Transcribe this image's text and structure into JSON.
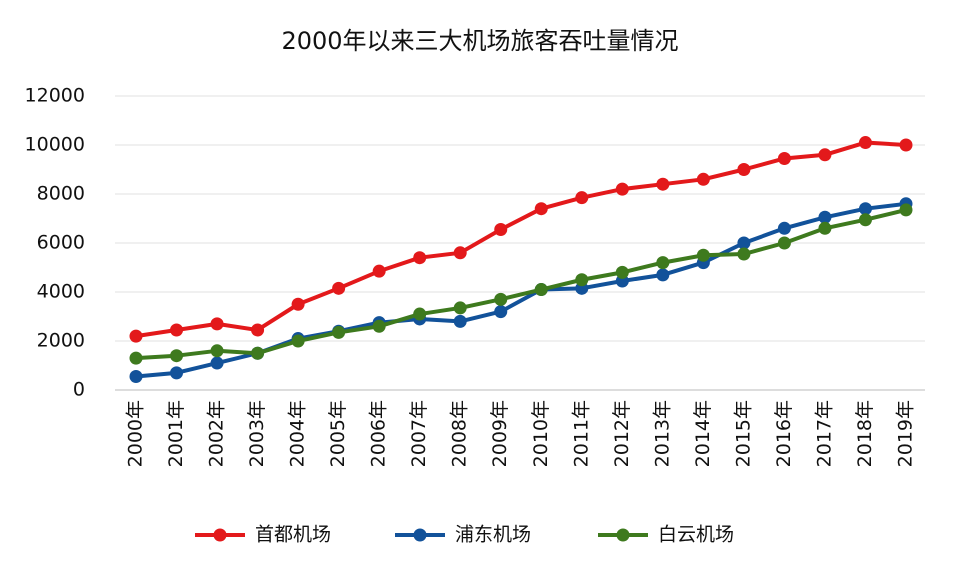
{
  "chart_data": {
    "type": "line",
    "title": "2000年以来三大机场旅客吞吐量情况",
    "categories": [
      "2000年",
      "2001年",
      "2002年",
      "2003年",
      "2004年",
      "2005年",
      "2006年",
      "2007年",
      "2008年",
      "2009年",
      "2010年",
      "2011年",
      "2012年",
      "2013年",
      "2014年",
      "2015年",
      "2016年",
      "2017年",
      "2018年",
      "2019年"
    ],
    "series": [
      {
        "name": "首都机场",
        "color": "#e3191b",
        "values": [
          2200,
          2450,
          2700,
          2450,
          3500,
          4150,
          4850,
          5400,
          5600,
          6550,
          7400,
          7850,
          8200,
          8400,
          8600,
          9000,
          9450,
          9600,
          10100,
          10000
        ]
      },
      {
        "name": "浦东机场",
        "color": "#12529a",
        "values": [
          550,
          700,
          1100,
          1500,
          2100,
          2400,
          2750,
          2900,
          2800,
          3200,
          4100,
          4150,
          4450,
          4700,
          5200,
          6000,
          6600,
          7050,
          7400,
          7600
        ]
      },
      {
        "name": "白云机场",
        "color": "#3e7a1e",
        "values": [
          1300,
          1400,
          1600,
          1500,
          2000,
          2350,
          2600,
          3100,
          3350,
          3700,
          4100,
          4500,
          4800,
          5200,
          5500,
          5550,
          6000,
          6600,
          6950,
          7350
        ]
      }
    ],
    "ylim": [
      0,
      12000
    ],
    "yticks": [
      0,
      2000,
      4000,
      6000,
      8000,
      10000,
      12000
    ],
    "grid": true,
    "legend": "bottom"
  }
}
